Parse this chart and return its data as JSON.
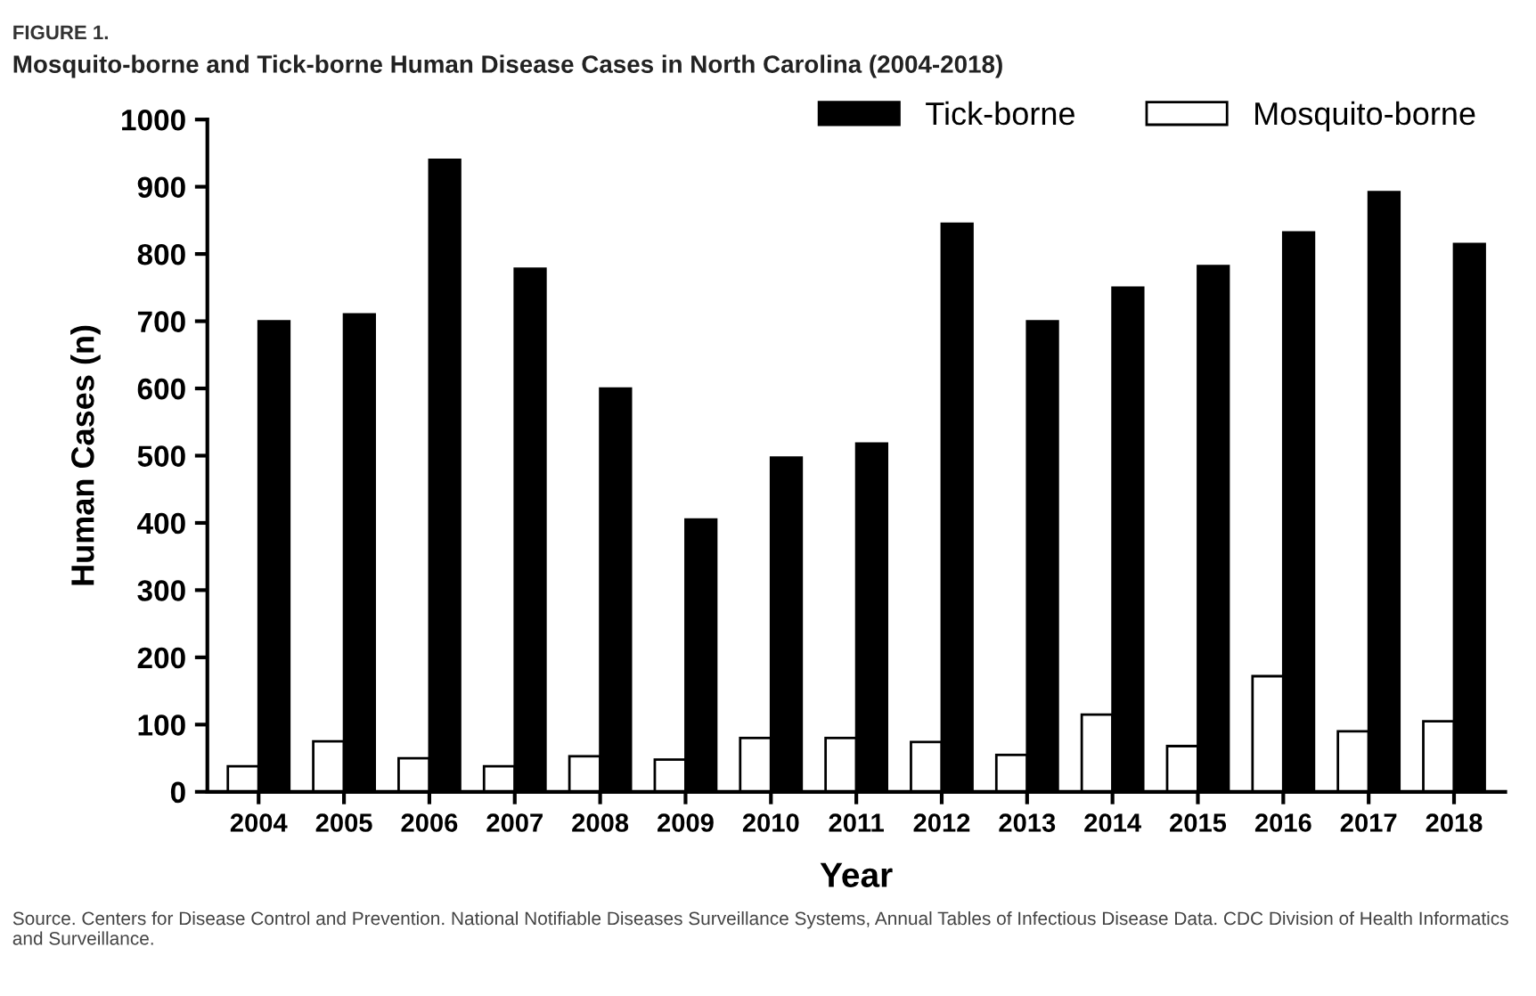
{
  "chart_data": {
    "type": "bar",
    "title": "FIGURE 1.",
    "subtitle": "Mosquito-borne and Tick-borne Human Disease Cases in North Carolina (2004-2018)",
    "xlabel": "Year",
    "ylabel": "Human Cases (n)",
    "categories": [
      "2004",
      "2005",
      "2006",
      "2007",
      "2008",
      "2009",
      "2010",
      "2011",
      "2012",
      "2013",
      "2014",
      "2015",
      "2016",
      "2017",
      "2018"
    ],
    "series": [
      {
        "name": "Mosquito-borne",
        "color": "#ffffff",
        "values": [
          38,
          75,
          50,
          38,
          53,
          48,
          80,
          80,
          74,
          55,
          115,
          68,
          172,
          90,
          105
        ]
      },
      {
        "name": "Tick-borne",
        "color": "#000000",
        "values": [
          700,
          710,
          940,
          778,
          600,
          405,
          497,
          518,
          845,
          700,
          750,
          782,
          832,
          892,
          815
        ]
      }
    ],
    "ylim": [
      0,
      1000
    ],
    "yticks": [
      0,
      100,
      200,
      300,
      400,
      500,
      600,
      700,
      800,
      900,
      1000
    ],
    "grid": false,
    "legend": "top right",
    "annotations": [
      "Source. Centers for Disease Control and Prevention. National Notifiable Diseases Surveillance Systems, Annual Tables of Infectious Disease Data. CDC Division of Health Informatics and Surveillance."
    ]
  }
}
